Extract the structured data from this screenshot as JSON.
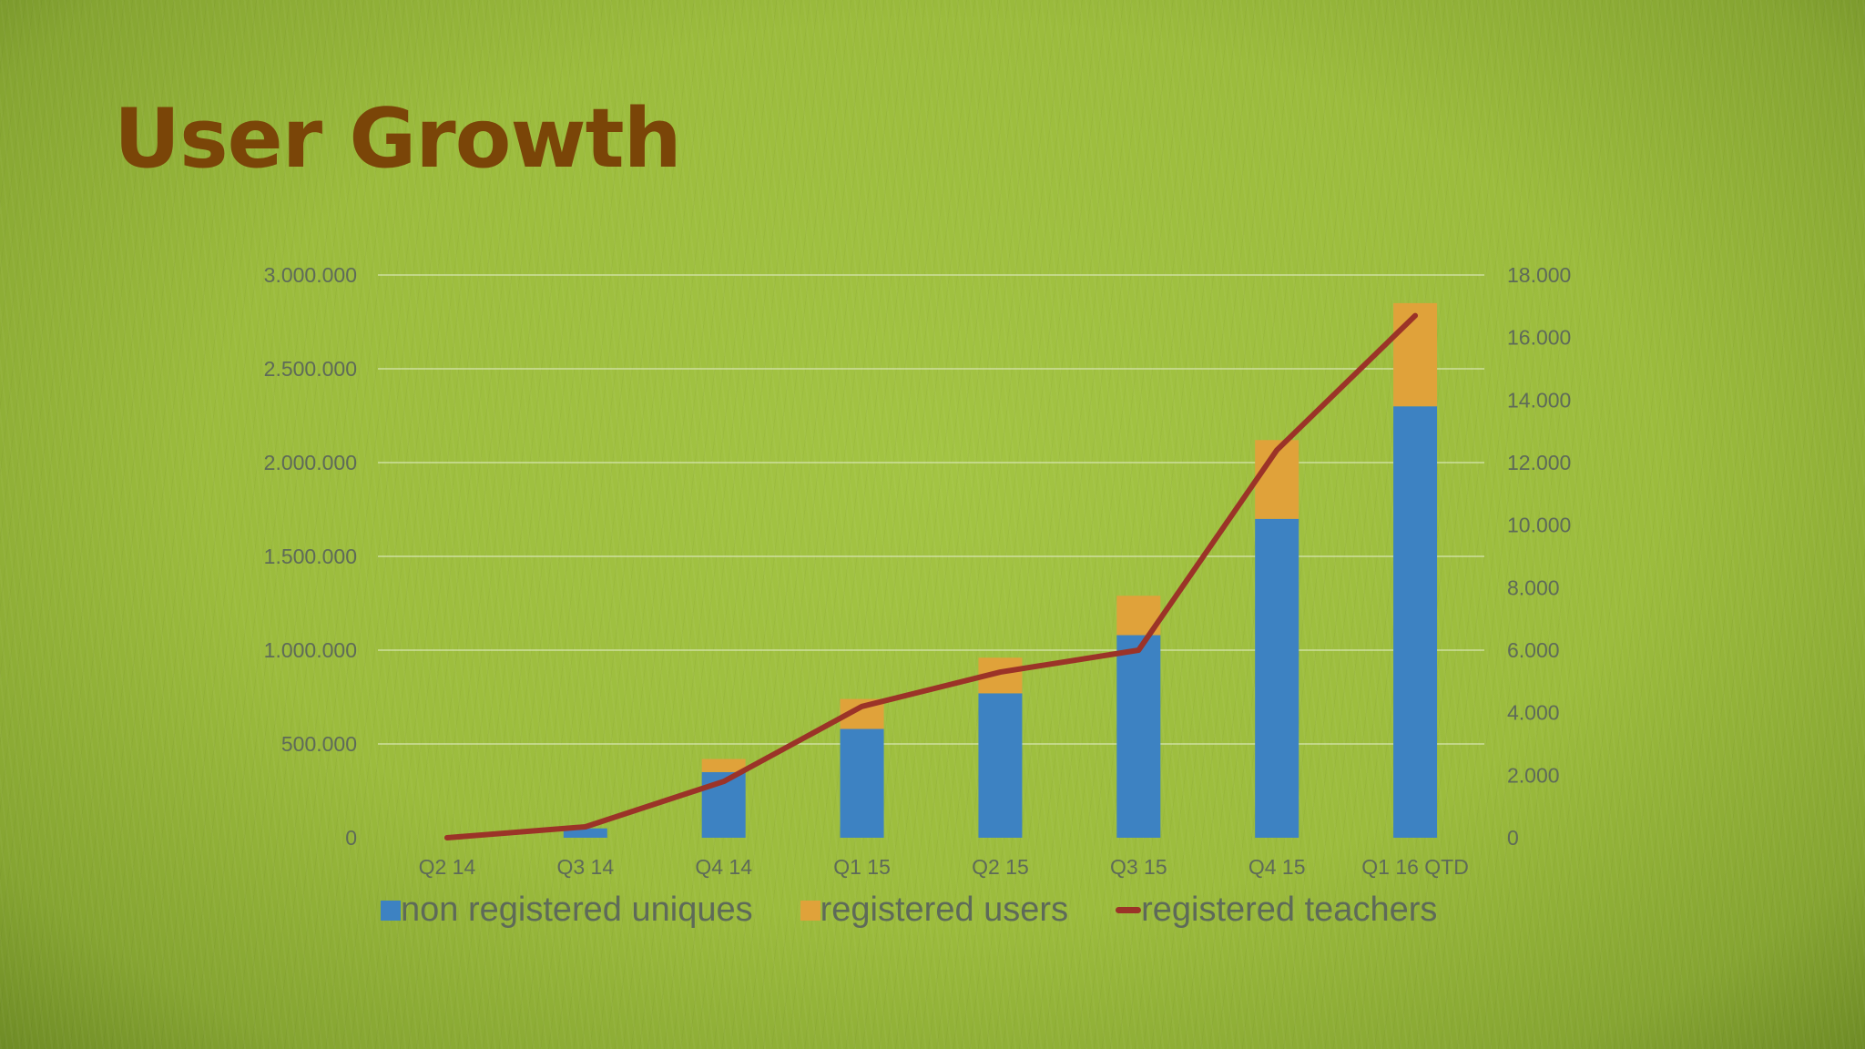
{
  "slide": {
    "title": "User Growth"
  },
  "colors": {
    "background": "#9dbd3e",
    "title": "#7a4508",
    "series_blue": "#3d82c2",
    "series_orange": "#e0a23a",
    "series_red": "#9b3328",
    "gridline": "#d8e6b0",
    "axis_text": "#5e6a59"
  },
  "chart_data": {
    "type": "bar",
    "stacked": true,
    "categories": [
      "Q2 14",
      "Q3 14",
      "Q4 14",
      "Q1 15",
      "Q2 15",
      "Q3 15",
      "Q4 15",
      "Q1 16 QTD"
    ],
    "series": [
      {
        "name": "non registered uniques",
        "type": "bar",
        "axis": "left",
        "color": "#3d82c2",
        "values": [
          0,
          50000,
          350000,
          580000,
          770000,
          1080000,
          1700000,
          2300000
        ]
      },
      {
        "name": "registered users",
        "type": "bar",
        "axis": "left",
        "color": "#e0a23a",
        "values": [
          0,
          0,
          70000,
          160000,
          190000,
          210000,
          420000,
          550000
        ]
      },
      {
        "name": "registered teachers",
        "type": "line",
        "axis": "right",
        "color": "#9b3328",
        "values": [
          0,
          350,
          1800,
          4200,
          5300,
          6000,
          12400,
          16700
        ]
      }
    ],
    "left_axis": {
      "ylim": [
        0,
        3000000
      ],
      "ticks": [
        0,
        500000,
        1000000,
        1500000,
        2000000,
        2500000,
        3000000
      ],
      "tick_labels": [
        "0",
        "500.000",
        "1.000.000",
        "1.500.000",
        "2.000.000",
        "2.500.000",
        "3.000.000"
      ]
    },
    "right_axis": {
      "ylim": [
        0,
        18000
      ],
      "ticks": [
        0,
        2000,
        4000,
        6000,
        8000,
        10000,
        12000,
        14000,
        16000,
        18000
      ],
      "tick_labels": [
        "0",
        "2.000",
        "4.000",
        "6.000",
        "8.000",
        "10.000",
        "12.000",
        "14.000",
        "16.000",
        "18.000"
      ]
    },
    "grid": true,
    "legend_position": "bottom"
  },
  "legend": {
    "items": [
      {
        "label": "non registered uniques"
      },
      {
        "label": "registered users"
      },
      {
        "label": "registered teachers"
      }
    ]
  }
}
